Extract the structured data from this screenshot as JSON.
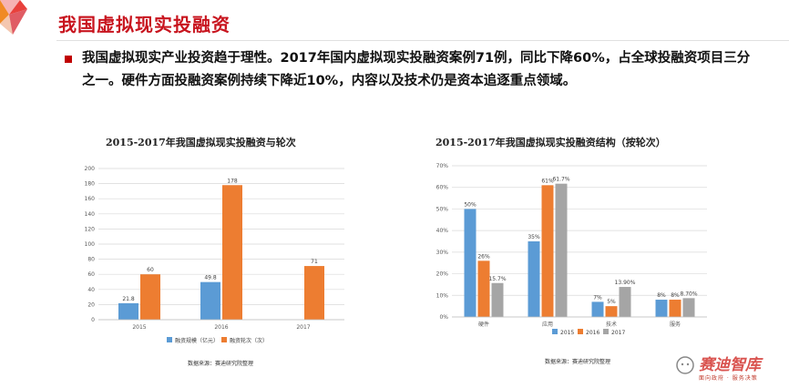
{
  "page": {
    "title": "我国虚拟现实投融资",
    "bullet": "我国虚拟现实产业投资趋于理性。2017年国内虚拟现实投融资案例71例，同比下降60%，占全球投融资项目三分之一。硬件方面投融资案例持续下降近10%，内容以及技术仍是资本追逐重点领域。",
    "watermark": "赛迪智库",
    "watermark_sub": "面向政府 · 服务决策"
  },
  "colors": {
    "blue": "#5b9bd5",
    "orange": "#ed7d31",
    "gray": "#a5a5a5",
    "title_red": "#c8141e"
  },
  "charts": [
    {
      "title": "2015-2017年我国虚拟现实投融资与轮次",
      "source": "数据来源：赛迪研究院整理",
      "chart_data": {
        "type": "bar",
        "categories": [
          "2015",
          "2016",
          "2017"
        ],
        "series": [
          {
            "name": "融资规模（亿元）",
            "values": [
              21.8,
              49.8,
              null
            ],
            "labels": [
              "21.8",
              "49.8",
              ""
            ],
            "color": "#5b9bd5"
          },
          {
            "name": "融资轮次（次）",
            "values": [
              60,
              178,
              71
            ],
            "labels": [
              "60",
              "178",
              "71"
            ],
            "color": "#ed7d31"
          }
        ],
        "yticks": [
          "0",
          "20",
          "40",
          "60",
          "80",
          "100",
          "120",
          "140",
          "160",
          "180",
          "200"
        ],
        "ylim": [
          0,
          200
        ],
        "grid": true,
        "legend": "bottom"
      }
    },
    {
      "title": "2015-2017年我国虚拟现实投融资结构（按轮次）",
      "source": "数据来源：赛迪研究院整理",
      "chart_data": {
        "type": "bar",
        "categories": [
          "硬件",
          "应用",
          "技术",
          "服务"
        ],
        "series": [
          {
            "name": "2015",
            "values": [
              50,
              35,
              7,
              8
            ],
            "labels": [
              "50%",
              "35%",
              "7%",
              "8%"
            ],
            "color": "#5b9bd5"
          },
          {
            "name": "2016",
            "values": [
              26,
              61,
              5,
              8
            ],
            "labels": [
              "26%",
              "61%",
              "5%",
              "8%"
            ],
            "color": "#ed7d31"
          },
          {
            "name": "2017",
            "values": [
              15.7,
              61.7,
              13.9,
              8.7
            ],
            "labels": [
              "15.7%",
              "61.7%",
              "13.90%",
              "8.70%"
            ],
            "color": "#a5a5a5"
          }
        ],
        "yticks": [
          "0%",
          "10%",
          "20%",
          "30%",
          "40%",
          "50%",
          "60%",
          "70%"
        ],
        "ylim": [
          0,
          70
        ],
        "grid": true,
        "legend": "bottom"
      }
    }
  ]
}
